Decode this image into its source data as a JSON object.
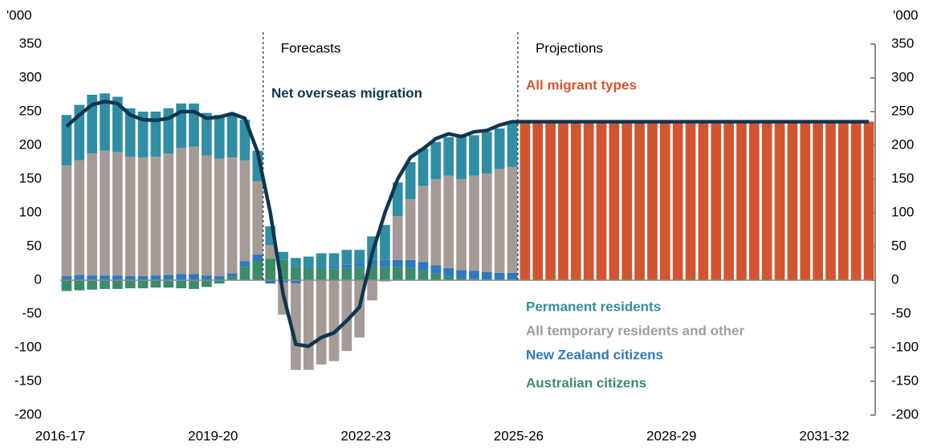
{
  "chart_data": {
    "type": "bar",
    "stacked": true,
    "y_unit": "'000",
    "annotations": [
      "Forecasts",
      "Projections"
    ],
    "categories": [
      "2016-17",
      null,
      null,
      null,
      null,
      null,
      null,
      null,
      null,
      null,
      null,
      null,
      "2019-20",
      null,
      null,
      null,
      null,
      null,
      null,
      null,
      null,
      null,
      null,
      null,
      "2022-23",
      null,
      null,
      null,
      null,
      null,
      null,
      null,
      null,
      null,
      null,
      null,
      "2025-26",
      null,
      null,
      null,
      null,
      null,
      null,
      null,
      null,
      null,
      null,
      null,
      "2028-29",
      null,
      null,
      null,
      null,
      null,
      null,
      null,
      null,
      null,
      null,
      null,
      "2031-32",
      null,
      null,
      null
    ],
    "ylim": [
      -200,
      350
    ],
    "yticks": [
      -200,
      -150,
      -100,
      -50,
      0,
      50,
      100,
      150,
      200,
      250,
      300,
      350
    ],
    "series": [
      {
        "name": "Australian citizens",
        "color": "#3b8c68",
        "values": [
          -16,
          -15,
          -14,
          -13,
          -13,
          -12,
          -12,
          -11,
          -11,
          -12,
          -13,
          -10,
          -5,
          5,
          20,
          28,
          32,
          30,
          20,
          18,
          18,
          17,
          18,
          20,
          22,
          20,
          20,
          18,
          15,
          10,
          5,
          3,
          2,
          1,
          1,
          1,
          null,
          null,
          null,
          null,
          null,
          null,
          null,
          null,
          null,
          null,
          null,
          null,
          null,
          null,
          null,
          null,
          null,
          null,
          null,
          null,
          null,
          null,
          null,
          null,
          null,
          null,
          null,
          null
        ]
      },
      {
        "name": "New Zealand citizens",
        "color": "#2e78c0",
        "values": [
          6,
          8,
          7,
          7,
          7,
          6,
          6,
          7,
          8,
          9,
          9,
          7,
          6,
          5,
          8,
          10,
          -5,
          -3,
          -5,
          3,
          3,
          4,
          5,
          6,
          8,
          10,
          10,
          12,
          12,
          12,
          13,
          12,
          12,
          11,
          10,
          10,
          null,
          null,
          null,
          null,
          null,
          null,
          null,
          null,
          null,
          null,
          null,
          null,
          null,
          null,
          null,
          null,
          null,
          null,
          null,
          null,
          null,
          null,
          null,
          null,
          null,
          null,
          null,
          null
        ]
      },
      {
        "name": "All temporary residents and other",
        "color": "#a59b96",
        "values": [
          164,
          170,
          181,
          185,
          183,
          177,
          176,
          176,
          180,
          187,
          189,
          178,
          174,
          172,
          150,
          109,
          20,
          -48,
          -128,
          -133,
          -125,
          -120,
          -105,
          -85,
          -30,
          -2,
          65,
          90,
          113,
          128,
          137,
          135,
          141,
          146,
          154,
          157,
          null,
          null,
          null,
          null,
          null,
          null,
          null,
          null,
          null,
          null,
          null,
          null,
          null,
          null,
          null,
          null,
          null,
          null,
          null,
          null,
          null,
          null,
          null,
          null,
          null,
          null,
          null,
          null
        ]
      },
      {
        "name": "Permanent residents",
        "color": "#2f8ea3",
        "values": [
          75,
          82,
          87,
          85,
          82,
          72,
          68,
          67,
          67,
          66,
          64,
          63,
          65,
          63,
          60,
          45,
          28,
          12,
          13,
          14,
          19,
          19,
          22,
          19,
          35,
          52,
          50,
          55,
          55,
          55,
          57,
          65,
          60,
          62,
          60,
          65,
          null,
          null,
          null,
          null,
          null,
          null,
          null,
          null,
          null,
          null,
          null,
          null,
          null,
          null,
          null,
          null,
          null,
          null,
          null,
          null,
          null,
          null,
          null,
          null,
          null,
          null,
          null,
          null
        ]
      },
      {
        "name": "All migrant types",
        "color": "#d15530",
        "values": [
          null,
          null,
          null,
          null,
          null,
          null,
          null,
          null,
          null,
          null,
          null,
          null,
          null,
          null,
          null,
          null,
          null,
          null,
          null,
          null,
          null,
          null,
          null,
          null,
          null,
          null,
          null,
          null,
          null,
          null,
          null,
          null,
          null,
          null,
          null,
          null,
          235,
          235,
          235,
          235,
          235,
          235,
          235,
          235,
          235,
          235,
          235,
          235,
          235,
          235,
          235,
          235,
          235,
          235,
          235,
          235,
          235,
          235,
          235,
          235,
          235,
          235,
          235,
          235
        ]
      },
      {
        "name": "Net overseas migration",
        "type": "line",
        "color": "#0e3650",
        "values": [
          228,
          245,
          260,
          265,
          262,
          245,
          238,
          237,
          240,
          250,
          250,
          240,
          242,
          247,
          240,
          190,
          100,
          -20,
          -95,
          -98,
          -85,
          -78,
          -60,
          -40,
          40,
          100,
          150,
          182,
          195,
          210,
          217,
          213,
          220,
          222,
          230,
          235,
          235,
          235,
          235,
          235,
          235,
          235,
          235,
          235,
          235,
          235,
          235,
          235,
          235,
          235,
          235,
          235,
          235,
          235,
          235,
          235,
          235,
          235,
          235,
          235,
          235,
          235,
          235,
          235
        ]
      }
    ]
  }
}
